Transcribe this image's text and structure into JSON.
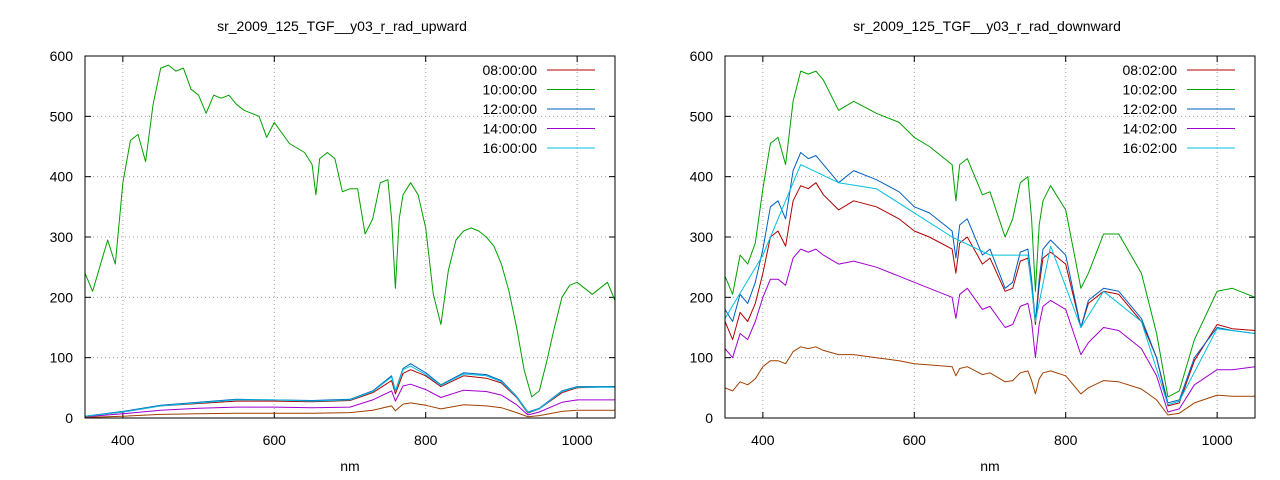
{
  "colors": {
    "s1": "#b00000",
    "s2": "#00a000",
    "s3": "#0060c0",
    "s4": "#a000d0",
    "s5": "#00c0e0",
    "s6": "#a04000"
  },
  "chart_data": [
    {
      "type": "line",
      "title": "sr_2009_125_TGF__y03_r_rad_upward",
      "xlabel": "nm",
      "ylabel": "",
      "xlim": [
        350,
        1050
      ],
      "ylim": [
        0,
        600
      ],
      "xticks": [
        400,
        600,
        800,
        1000
      ],
      "yticks": [
        0,
        100,
        200,
        300,
        400,
        500,
        600
      ],
      "grid": true,
      "legend": "top-right",
      "series": [
        {
          "name": "08:00:00",
          "color_key": "s1",
          "x": [
            350,
            400,
            450,
            500,
            550,
            600,
            650,
            700,
            730,
            755,
            760,
            770,
            780,
            800,
            820,
            850,
            880,
            900,
            920,
            935,
            950,
            980,
            1000,
            1050
          ],
          "y": [
            3,
            10,
            20,
            24,
            28,
            28,
            27,
            29,
            42,
            62,
            40,
            74,
            80,
            70,
            52,
            70,
            66,
            58,
            34,
            8,
            15,
            42,
            50,
            52
          ]
        },
        {
          "name": "10:00:00",
          "color_key": "s2",
          "x": [
            350,
            360,
            380,
            390,
            400,
            410,
            420,
            430,
            440,
            450,
            460,
            470,
            480,
            490,
            500,
            510,
            520,
            530,
            540,
            550,
            560,
            570,
            580,
            590,
            600,
            620,
            640,
            650,
            655,
            660,
            670,
            680,
            690,
            700,
            710,
            720,
            730,
            740,
            750,
            755,
            760,
            765,
            770,
            780,
            790,
            800,
            810,
            820,
            830,
            840,
            850,
            860,
            870,
            880,
            890,
            900,
            910,
            920,
            930,
            940,
            950,
            960,
            970,
            980,
            990,
            1000,
            1010,
            1020,
            1030,
            1040,
            1050
          ],
          "y": [
            240,
            210,
            295,
            255,
            390,
            460,
            470,
            425,
            520,
            580,
            585,
            575,
            580,
            545,
            535,
            505,
            535,
            530,
            535,
            520,
            510,
            505,
            500,
            465,
            490,
            455,
            440,
            420,
            370,
            430,
            440,
            430,
            375,
            380,
            380,
            305,
            330,
            390,
            395,
            330,
            215,
            330,
            370,
            390,
            370,
            315,
            205,
            155,
            245,
            295,
            310,
            315,
            310,
            300,
            285,
            255,
            210,
            150,
            80,
            35,
            45,
            95,
            150,
            200,
            220,
            225,
            215,
            205,
            215,
            225,
            195
          ]
        },
        {
          "name": "12:00:00",
          "color_key": "s3",
          "x": [
            350,
            400,
            450,
            500,
            550,
            600,
            650,
            700,
            730,
            755,
            760,
            770,
            780,
            800,
            820,
            850,
            880,
            900,
            920,
            935,
            950,
            980,
            1000,
            1050
          ],
          "y": [
            3,
            11,
            21,
            26,
            31,
            30,
            29,
            31,
            45,
            70,
            45,
            82,
            90,
            75,
            55,
            75,
            72,
            62,
            36,
            10,
            16,
            45,
            52,
            52
          ]
        },
        {
          "name": "14:00:00",
          "color_key": "s4",
          "x": [
            350,
            400,
            450,
            500,
            550,
            600,
            650,
            700,
            730,
            755,
            760,
            770,
            780,
            800,
            820,
            850,
            880,
            900,
            920,
            935,
            950,
            980,
            1000,
            1050
          ],
          "y": [
            2,
            7,
            13,
            16,
            18,
            18,
            17,
            18,
            30,
            45,
            28,
            53,
            56,
            47,
            34,
            46,
            44,
            38,
            22,
            5,
            10,
            26,
            30,
            30
          ]
        },
        {
          "name": "16:00:00",
          "color_key": "s5",
          "x": [
            350,
            400,
            450,
            500,
            550,
            600,
            650,
            700,
            730,
            755,
            760,
            770,
            780,
            800,
            820,
            850,
            880,
            900,
            920,
            935,
            950,
            980,
            1000,
            1050
          ],
          "y": [
            3,
            10,
            20,
            25,
            30,
            30,
            28,
            30,
            44,
            68,
            44,
            80,
            86,
            72,
            54,
            73,
            70,
            60,
            35,
            9,
            15,
            44,
            51,
            51
          ]
        },
        {
          "name": "",
          "color_key": "s6",
          "x": [
            350,
            400,
            450,
            500,
            550,
            600,
            650,
            700,
            730,
            755,
            760,
            770,
            780,
            800,
            820,
            850,
            880,
            900,
            920,
            935,
            950,
            980,
            1000,
            1050
          ],
          "y": [
            1,
            3,
            6,
            7,
            8,
            8,
            8,
            9,
            13,
            20,
            12,
            23,
            25,
            21,
            15,
            22,
            20,
            17,
            9,
            2,
            4,
            11,
            13,
            13
          ]
        }
      ]
    },
    {
      "type": "line",
      "title": "sr_2009_125_TGF__y03_r_rad_downward",
      "xlabel": "nm",
      "ylabel": "",
      "xlim": [
        350,
        1050
      ],
      "ylim": [
        0,
        600
      ],
      "xticks": [
        400,
        600,
        800,
        1000
      ],
      "yticks": [
        0,
        100,
        200,
        300,
        400,
        500,
        600
      ],
      "grid": true,
      "legend": "top-right",
      "series": [
        {
          "name": "08:02:00",
          "color_key": "s1",
          "x": [
            350,
            360,
            370,
            380,
            390,
            400,
            410,
            420,
            430,
            440,
            450,
            460,
            470,
            480,
            500,
            520,
            550,
            580,
            600,
            620,
            650,
            655,
            660,
            670,
            690,
            700,
            720,
            730,
            740,
            750,
            755,
            760,
            765,
            770,
            780,
            800,
            820,
            830,
            850,
            870,
            900,
            920,
            935,
            950,
            970,
            1000,
            1020,
            1050
          ],
          "y": [
            160,
            130,
            175,
            160,
            190,
            240,
            300,
            310,
            285,
            360,
            385,
            380,
            390,
            370,
            345,
            360,
            350,
            330,
            310,
            300,
            280,
            240,
            290,
            300,
            255,
            265,
            210,
            215,
            260,
            265,
            220,
            155,
            220,
            265,
            275,
            255,
            150,
            190,
            210,
            205,
            160,
            100,
            20,
            25,
            95,
            155,
            148,
            145
          ]
        },
        {
          "name": "10:02:00",
          "color_key": "s2",
          "x": [
            350,
            360,
            370,
            380,
            390,
            400,
            410,
            420,
            430,
            440,
            450,
            460,
            470,
            480,
            500,
            520,
            550,
            580,
            600,
            620,
            650,
            655,
            660,
            670,
            690,
            700,
            720,
            730,
            740,
            750,
            755,
            760,
            765,
            770,
            780,
            800,
            820,
            830,
            850,
            870,
            900,
            920,
            935,
            950,
            970,
            1000,
            1020,
            1050
          ],
          "y": [
            235,
            205,
            270,
            255,
            290,
            380,
            455,
            465,
            420,
            525,
            575,
            570,
            575,
            560,
            510,
            525,
            505,
            490,
            465,
            450,
            420,
            360,
            420,
            430,
            370,
            375,
            300,
            330,
            390,
            400,
            330,
            210,
            320,
            360,
            385,
            345,
            215,
            240,
            305,
            305,
            240,
            140,
            35,
            45,
            130,
            210,
            215,
            200
          ]
        },
        {
          "name": "12:02:00",
          "color_key": "s3",
          "x": [
            350,
            360,
            370,
            380,
            390,
            400,
            410,
            420,
            430,
            440,
            450,
            460,
            470,
            480,
            500,
            520,
            550,
            580,
            600,
            620,
            650,
            655,
            660,
            670,
            690,
            700,
            720,
            730,
            740,
            750,
            755,
            760,
            765,
            770,
            780,
            800,
            820,
            830,
            850,
            870,
            900,
            920,
            935,
            950,
            970,
            1000,
            1020,
            1050
          ],
          "y": [
            180,
            160,
            205,
            190,
            225,
            280,
            350,
            360,
            330,
            410,
            440,
            430,
            435,
            420,
            390,
            410,
            395,
            375,
            350,
            340,
            310,
            265,
            320,
            330,
            270,
            280,
            215,
            225,
            275,
            280,
            230,
            160,
            230,
            280,
            295,
            270,
            150,
            195,
            215,
            210,
            165,
            100,
            25,
            30,
            100,
            150,
            145,
            140
          ]
        },
        {
          "name": "14:02:00",
          "color_key": "s4",
          "x": [
            350,
            360,
            370,
            380,
            390,
            400,
            410,
            420,
            430,
            440,
            450,
            460,
            470,
            480,
            500,
            520,
            550,
            580,
            600,
            620,
            650,
            655,
            660,
            670,
            690,
            700,
            720,
            730,
            740,
            750,
            755,
            760,
            765,
            770,
            780,
            800,
            820,
            830,
            850,
            870,
            900,
            920,
            935,
            950,
            970,
            1000,
            1020,
            1050
          ],
          "y": [
            115,
            100,
            140,
            130,
            160,
            200,
            230,
            230,
            220,
            265,
            280,
            275,
            280,
            270,
            255,
            260,
            250,
            235,
            225,
            215,
            200,
            165,
            205,
            215,
            180,
            185,
            150,
            155,
            185,
            190,
            160,
            100,
            155,
            185,
            195,
            180,
            105,
            125,
            150,
            145,
            115,
            70,
            10,
            15,
            55,
            80,
            80,
            85
          ]
        },
        {
          "name": "16:02:00",
          "color_key": "s5",
          "x": [
            350,
            400,
            450,
            500,
            550,
            600,
            650,
            700,
            750,
            760,
            780,
            820,
            850,
            900,
            935,
            950,
            1000,
            1050
          ],
          "y": [
            165,
            270,
            420,
            390,
            380,
            340,
            300,
            270,
            270,
            160,
            285,
            150,
            210,
            160,
            22,
            28,
            148,
            140
          ]
        },
        {
          "name": "",
          "color_key": "s6",
          "x": [
            350,
            360,
            370,
            380,
            390,
            400,
            410,
            420,
            430,
            440,
            450,
            460,
            470,
            480,
            500,
            520,
            550,
            580,
            600,
            620,
            650,
            655,
            660,
            670,
            690,
            700,
            720,
            730,
            740,
            750,
            755,
            760,
            765,
            770,
            780,
            800,
            820,
            830,
            850,
            870,
            900,
            920,
            935,
            950,
            970,
            1000,
            1020,
            1050
          ],
          "y": [
            50,
            45,
            60,
            55,
            65,
            85,
            95,
            95,
            90,
            110,
            118,
            115,
            118,
            112,
            105,
            105,
            100,
            95,
            90,
            88,
            85,
            70,
            82,
            85,
            72,
            75,
            60,
            62,
            75,
            78,
            62,
            40,
            65,
            75,
            78,
            70,
            40,
            50,
            62,
            60,
            48,
            30,
            5,
            8,
            25,
            38,
            36,
            36
          ]
        }
      ]
    }
  ]
}
